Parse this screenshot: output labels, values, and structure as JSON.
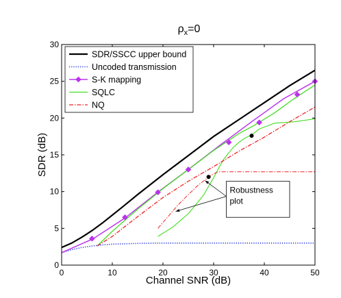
{
  "chart_data": {
    "type": "line",
    "title_base": "ρ",
    "title_sub": "x",
    "title_rest": "=0",
    "xlabel": "Channel SNR (dB)",
    "ylabel": "SDR (dB)",
    "xlim": [
      0,
      50
    ],
    "ylim": [
      0,
      30
    ],
    "xticks": [
      0,
      10,
      20,
      30,
      40,
      50
    ],
    "yticks": [
      0,
      5,
      10,
      15,
      20,
      25,
      30
    ],
    "grid": false,
    "legend_position": "top-left",
    "series": [
      {
        "name": "SDR/SSCC upper bound",
        "color": "#000000",
        "dash": "",
        "width": 2.2,
        "x": [
          0,
          2,
          4,
          6,
          8,
          10,
          12,
          15,
          20,
          25,
          30,
          35,
          40,
          45,
          50
        ],
        "y": [
          2.4,
          3.0,
          3.8,
          4.7,
          5.7,
          6.8,
          7.9,
          9.6,
          12.3,
          14.9,
          17.5,
          19.8,
          22.1,
          24.4,
          26.5
        ]
      },
      {
        "name": "Uncoded transmission",
        "color": "#2233dd",
        "dash": "1.2 2",
        "width": 1.6,
        "x": [
          0,
          2,
          4,
          6,
          8,
          10,
          15,
          20,
          30,
          40,
          50
        ],
        "y": [
          1.7,
          2.1,
          2.4,
          2.6,
          2.75,
          2.85,
          2.95,
          3.0,
          3.0,
          3.0,
          3.0
        ]
      },
      {
        "name": "S-K mapping",
        "color": "#bb33ee",
        "dash": "",
        "width": 1.5,
        "marker": "diamond",
        "x": [
          0,
          6.25,
          12.5,
          18.75,
          25,
          31.25,
          37.5,
          43.75,
          50
        ],
        "y": [
          1.7,
          3.6,
          6.4,
          9.8,
          13.0,
          16.3,
          19.5,
          22.6,
          25.0
        ],
        "marker_x": [
          6,
          12.5,
          19,
          25,
          33,
          39,
          46.5,
          50
        ],
        "marker_y": [
          3.6,
          6.5,
          9.9,
          13.0,
          16.7,
          19.4,
          23.2,
          25.0
        ]
      },
      {
        "name": "SQLC",
        "color": "#44dd22",
        "dash": "",
        "width": 1.3,
        "x": [
          7,
          10,
          15,
          20,
          25,
          30,
          35,
          38,
          42,
          46,
          50
        ],
        "y": [
          2.6,
          4.6,
          7.6,
          10.4,
          13.0,
          15.6,
          17.9,
          19.0,
          20.7,
          22.7,
          24.5
        ]
      },
      {
        "name": "NQ",
        "color": "#ee2222",
        "dash": "6 2 1.5 2",
        "width": 1.3,
        "x": [
          7,
          10,
          15,
          20,
          25,
          30,
          35,
          40,
          45,
          50
        ],
        "y": [
          2.6,
          3.9,
          6.6,
          9.2,
          11.4,
          13.4,
          15.5,
          17.4,
          19.5,
          21.5
        ]
      }
    ],
    "robustness_sqlc": {
      "x": [
        19,
        22,
        25,
        28,
        30,
        31,
        32,
        33,
        34,
        35,
        36,
        37,
        37.5,
        39,
        42,
        46,
        50
      ],
      "y": [
        3.9,
        5.2,
        7.0,
        9.5,
        11.9,
        13.2,
        14.4,
        15.3,
        16.1,
        16.7,
        17.2,
        17.55,
        17.7,
        18.5,
        19.3,
        19.5,
        19.9
      ]
    },
    "robustness_nq": {
      "x": [
        19,
        21,
        23,
        25,
        27,
        28.5,
        29.5,
        30.5,
        31,
        35,
        40,
        45,
        50
      ],
      "y": [
        5.0,
        6.6,
        8.2,
        9.6,
        10.9,
        11.7,
        12.2,
        12.6,
        12.7,
        12.7,
        12.7,
        12.7,
        12.7
      ]
    },
    "points": [
      {
        "x": 37.5,
        "y": 17.6
      },
      {
        "x": 29,
        "y": 12.0
      }
    ],
    "annotation": {
      "lines": [
        "Robustness",
        "plot"
      ],
      "box_x": [
        32.5,
        45
      ],
      "box_y": [
        6.5,
        11.4
      ],
      "arrow_targets": [
        {
          "x": 28.3,
          "y": 11.5
        },
        {
          "x": 22.5,
          "y": 7.3
        }
      ]
    }
  }
}
